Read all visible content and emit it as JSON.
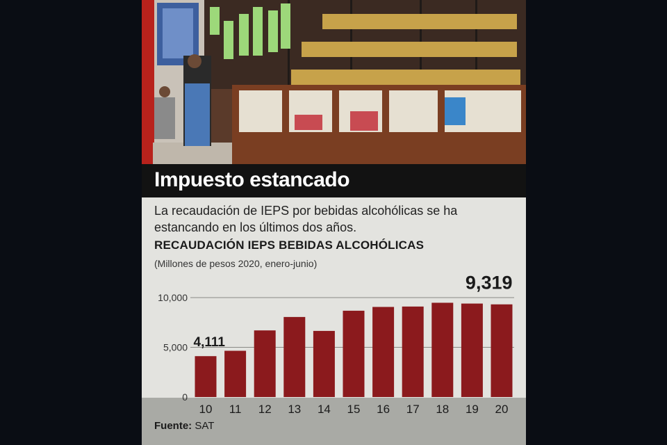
{
  "header": {
    "title": "Impuesto estancado",
    "subtitle": "La recaudación de IEPS por bebidas alcohólicas se ha estancando en los últimos dos años.",
    "chart_title": "RECAUDACIÓN IEPS BEBIDAS ALCOHÓLICAS",
    "units": "(Millones de pesos 2020, enero-junio)"
  },
  "footer": {
    "source_label": "Fuente:",
    "source_value": "SAT"
  },
  "photo": {
    "description_icon": "liquor-store-photo"
  },
  "colors": {
    "bar": "#8b1a1d",
    "title_bg": "#121212",
    "panel_bg": "#e3e3df",
    "axis_band": "#a9aaa5",
    "gridline": "#8a8a86"
  },
  "chart_data": {
    "type": "bar",
    "title": "RECAUDACIÓN IEPS BEBIDAS ALCOHÓLICAS",
    "xlabel": "",
    "ylabel": "",
    "categories": [
      "10",
      "11",
      "12",
      "13",
      "14",
      "15",
      "16",
      "17",
      "18",
      "19",
      "20"
    ],
    "values": [
      4111,
      4650,
      6700,
      8050,
      6650,
      8680,
      9060,
      9100,
      9480,
      9400,
      9319
    ],
    "data_labels": [
      {
        "index": 0,
        "text": "4,111"
      },
      {
        "index": 10,
        "text": "9,319"
      }
    ],
    "yticks": [
      0,
      5000,
      10000
    ],
    "ytick_labels": [
      "0",
      "5,000",
      "10,000"
    ],
    "ylim": [
      0,
      10000
    ],
    "grid": true,
    "legend": "none"
  }
}
